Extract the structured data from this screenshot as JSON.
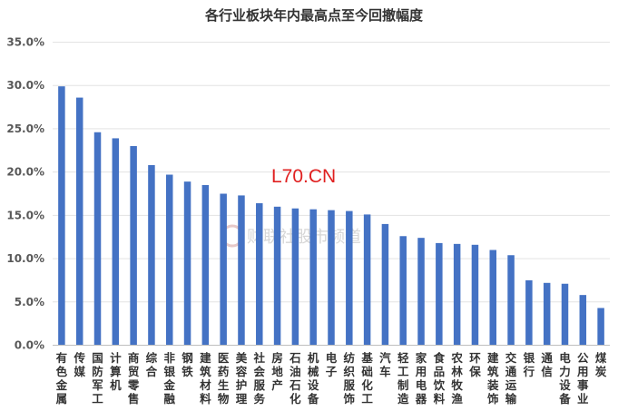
{
  "chart_data": {
    "type": "bar",
    "title": "各行业板块年内最高点至今回撤幅度",
    "xlabel": "",
    "ylabel": "",
    "ylim": [
      0,
      35
    ],
    "yticks": [
      "0.0%",
      "5.0%",
      "10.0%",
      "15.0%",
      "20.0%",
      "25.0%",
      "30.0%",
      "35.0%"
    ],
    "grid": true,
    "legend": "none",
    "bar_color": "#4472C4",
    "categories": [
      "有色金属",
      "传媒",
      "国防军工",
      "计算机",
      "商贸零售",
      "综合",
      "非银金融",
      "钢铁",
      "建筑材料",
      "医药生物",
      "美容护理",
      "社会服务",
      "房地产",
      "石油石化",
      "机械设备",
      "电子",
      "纺织服饰",
      "基础化工",
      "汽车",
      "轻工制造",
      "家用电器",
      "食品饮料",
      "农林牧渔",
      "环保",
      "建筑装饰",
      "交通运输",
      "银行",
      "通信",
      "电力设备",
      "公用事业",
      "煤炭"
    ],
    "values": [
      29.9,
      28.6,
      24.6,
      23.9,
      23.0,
      20.8,
      19.7,
      18.9,
      18.5,
      17.5,
      17.3,
      16.4,
      16.0,
      15.8,
      15.7,
      15.6,
      15.5,
      15.1,
      14.0,
      12.6,
      12.4,
      11.8,
      11.7,
      11.6,
      11.0,
      10.4,
      7.5,
      7.2,
      7.1,
      5.8,
      4.3
    ]
  },
  "overlay_text": "L70.CN",
  "watermark": {
    "text": "财联社股市频道",
    "icon": "cls-logo-icon"
  }
}
